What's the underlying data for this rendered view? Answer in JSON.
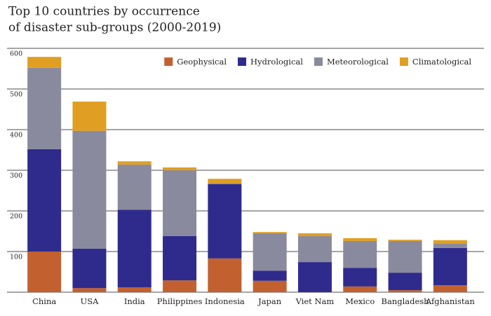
{
  "chart_data": {
    "type": "stacked-bar",
    "title": [
      "Top 10 countries by occurrence",
      "of disaster sub-groups (2000-2019)"
    ],
    "categories": [
      "China",
      "USA",
      "India",
      "Philippines",
      "Indonesia",
      "Japan",
      "Viet Nam",
      "Mexico",
      "Bangladesh",
      "Afghanistan"
    ],
    "series": [
      {
        "name": "Geophysical",
        "color": "#c2612f",
        "values": [
          100,
          10,
          12,
          29,
          83,
          28,
          0,
          14,
          5,
          17
        ]
      },
      {
        "name": "Hydrological",
        "color": "#2f2b8c",
        "values": [
          252,
          97,
          191,
          109,
          183,
          25,
          74,
          46,
          43,
          92
        ]
      },
      {
        "name": "Meteorological",
        "color": "#8a8a9e",
        "values": [
          200,
          290,
          111,
          162,
          2,
          92,
          64,
          66,
          78,
          10
        ]
      },
      {
        "name": "Climatological",
        "color": "#e09f22",
        "values": [
          27,
          72,
          8,
          7,
          11,
          3,
          7,
          7,
          3,
          9
        ]
      }
    ],
    "ylim": [
      0,
      600
    ],
    "yticks": [
      0,
      100,
      200,
      300,
      400,
      500,
      600
    ],
    "grid": true,
    "legend": "top-right"
  }
}
